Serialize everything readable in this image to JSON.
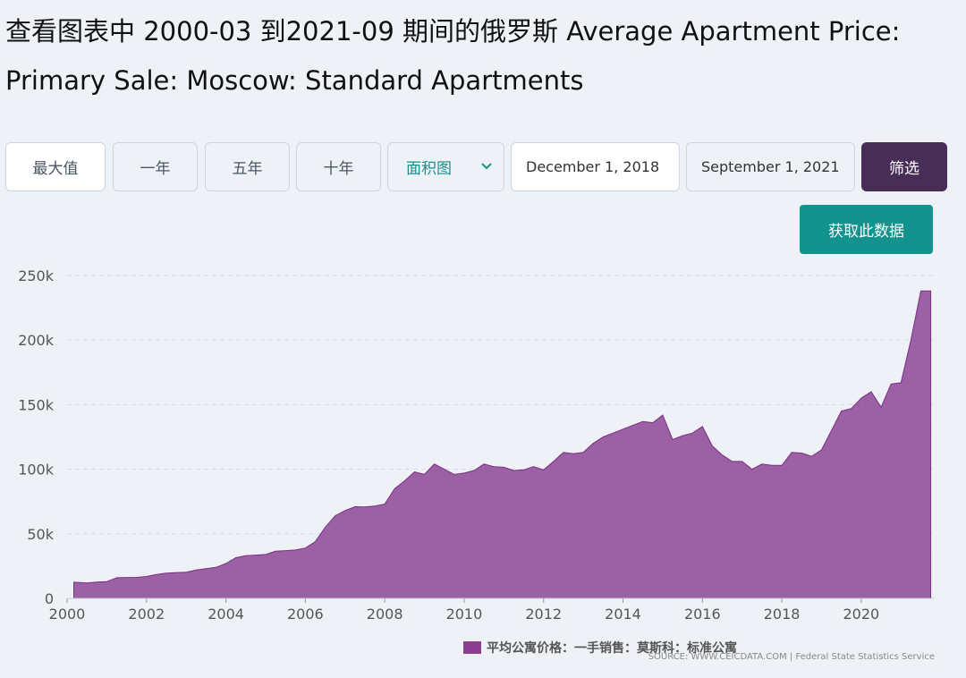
{
  "title": "查看图表中 2000-03 到2021-09 期间的俄罗斯 Average Apartment Price: Primary Sale: Moscow: Standard Apartments",
  "range_buttons": [
    "最大值",
    "一年",
    "五年",
    "十年"
  ],
  "chart_type_select": "面积图",
  "start_date": "December 1, 2018",
  "end_date": "September 1, 2021",
  "filter_label": "筛选",
  "get_data_label": "获取此数据",
  "legend_label": "平均公寓价格：一手销售：莫斯科：标准公寓",
  "source": "SOURCE: WWW.CEICDATA.COM | Federal State Statistics Service",
  "colors": {
    "area": "#8a3f91",
    "accent": "#13938e",
    "filter": "#482d57"
  },
  "chart_data": {
    "type": "area",
    "title": "",
    "xlabel": "",
    "ylabel": "",
    "ylim": [
      0,
      250000
    ],
    "xlim": [
      2000,
      2021.85
    ],
    "grid": true,
    "legend_position": "bottom",
    "y_ticks": [
      0,
      50000,
      100000,
      150000,
      200000,
      250000
    ],
    "y_tick_labels": [
      "0",
      "50k",
      "100k",
      "150k",
      "200k",
      "250k"
    ],
    "x_ticks": [
      2000,
      2002,
      2004,
      2006,
      2008,
      2010,
      2012,
      2014,
      2016,
      2018,
      2020
    ],
    "x_tick_labels": [
      "2000",
      "2002",
      "2004",
      "2006",
      "2008",
      "2010",
      "2012",
      "2014",
      "2016",
      "2018",
      "2020"
    ],
    "series": [
      {
        "name": "平均公寓价格：一手销售：莫斯科：标准公寓",
        "x": [
          2000.17,
          2000.5,
          2000.75,
          2001.0,
          2001.25,
          2001.5,
          2001.75,
          2002.0,
          2002.25,
          2002.5,
          2002.75,
          2003.0,
          2003.25,
          2003.5,
          2003.75,
          2004.0,
          2004.25,
          2004.5,
          2004.75,
          2005.0,
          2005.25,
          2005.5,
          2005.75,
          2006.0,
          2006.25,
          2006.5,
          2006.75,
          2007.0,
          2007.25,
          2007.5,
          2007.75,
          2008.0,
          2008.25,
          2008.5,
          2008.75,
          2009.0,
          2009.25,
          2009.5,
          2009.75,
          2010.0,
          2010.25,
          2010.5,
          2010.75,
          2011.0,
          2011.25,
          2011.5,
          2011.75,
          2012.0,
          2012.25,
          2012.5,
          2012.75,
          2013.0,
          2013.25,
          2013.5,
          2013.75,
          2014.0,
          2014.25,
          2014.5,
          2014.75,
          2015.0,
          2015.25,
          2015.5,
          2015.75,
          2016.0,
          2016.25,
          2016.5,
          2016.75,
          2017.0,
          2017.25,
          2017.5,
          2017.75,
          2018.0,
          2018.25,
          2018.5,
          2018.75,
          2019.0,
          2019.25,
          2019.5,
          2019.75,
          2020.0,
          2020.25,
          2020.5,
          2020.75,
          2021.0,
          2021.25,
          2021.5,
          2021.75
        ],
        "values": [
          12500,
          12000,
          12600,
          13000,
          16000,
          16200,
          16300,
          17000,
          18500,
          19500,
          20000,
          20300,
          22000,
          23000,
          24000,
          27000,
          31500,
          33000,
          33500,
          34000,
          36500,
          37000,
          37500,
          39000,
          44000,
          55000,
          64000,
          68000,
          71000,
          70800,
          71500,
          73000,
          85000,
          91000,
          98000,
          96000,
          104000,
          100000,
          96000,
          97000,
          99000,
          104000,
          102000,
          101500,
          99000,
          99500,
          102000,
          99500,
          106000,
          113000,
          112000,
          113000,
          120000,
          125000,
          128000,
          131000,
          134000,
          137000,
          136000,
          142000,
          123000,
          126000,
          128000,
          133000,
          118000,
          111000,
          106000,
          106000,
          100000,
          104000,
          103000,
          103000,
          113000,
          112500,
          110000,
          115000,
          130000,
          145000,
          147000,
          155000,
          160000,
          148000,
          166000,
          167000,
          200000,
          238000,
          238000
        ]
      }
    ]
  }
}
